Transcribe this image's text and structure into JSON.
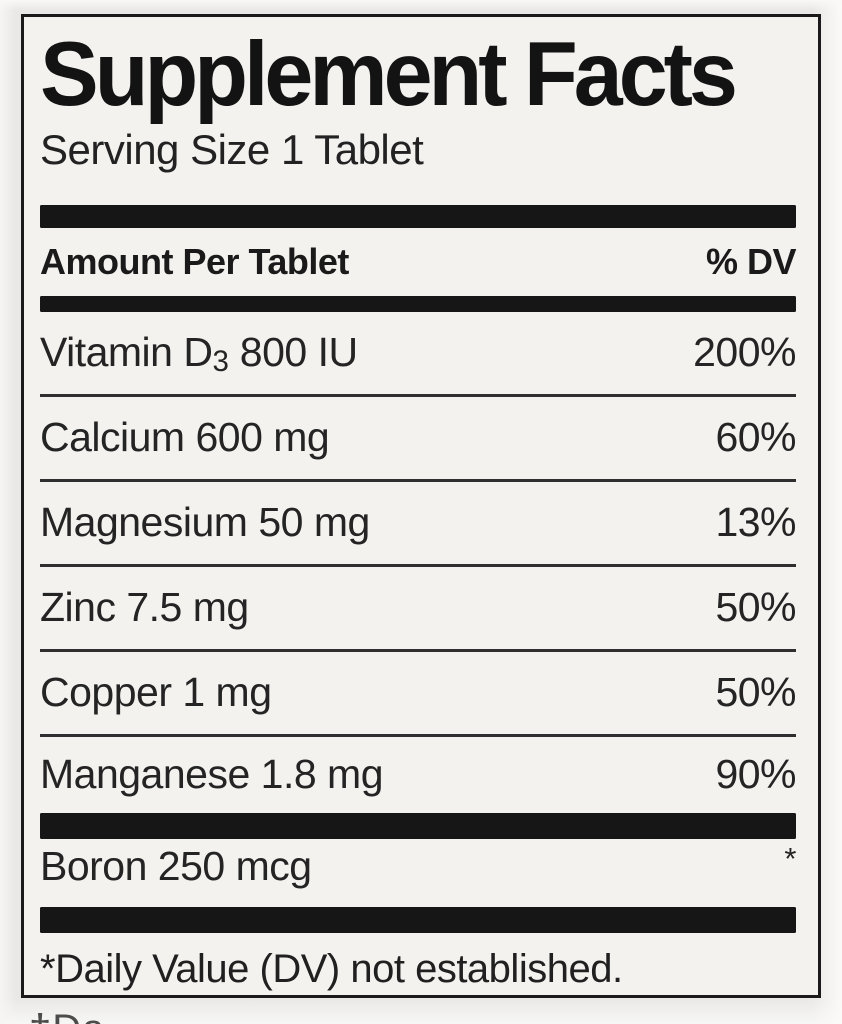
{
  "colors": {
    "label_bg": "#f3f2ef",
    "outer_bg": "#e9e8e6",
    "ink": "#1a1a1a"
  },
  "label": {
    "title": "Supplement Facts",
    "serving_size": "Serving Size 1 Tablet",
    "header": {
      "amount_col": "Amount Per Tablet",
      "dv_col": "% DV"
    },
    "rows": [
      {
        "pre": "Vitamin D",
        "sub": "3",
        "post": " 800 IU",
        "dv": "200%"
      },
      {
        "name": "Calcium 600 mg",
        "dv": "60%"
      },
      {
        "name": "Magnesium 50 mg",
        "dv": "13%"
      },
      {
        "name": "Zinc 7.5 mg",
        "dv": "50%"
      },
      {
        "name": "Copper 1 mg",
        "dv": "50%"
      },
      {
        "name": "Manganese 1.8 mg",
        "dv": "90%"
      },
      {
        "name": "Boron 250 mcg",
        "dv": "*"
      }
    ],
    "footnote": "*Daily Value (DV) not established.",
    "partial_bottom_text": "†Da"
  }
}
